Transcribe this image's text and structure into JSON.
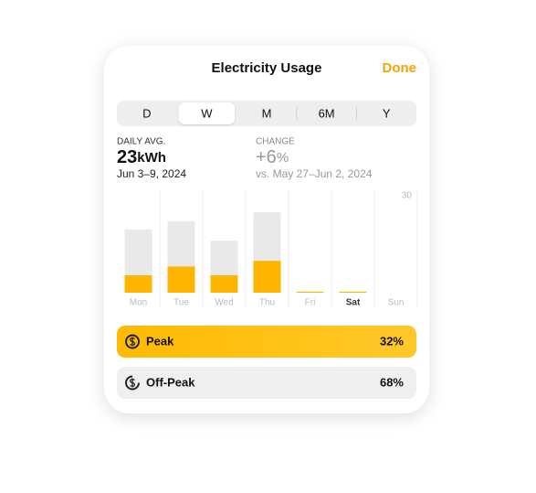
{
  "header": {
    "title": "Electricity Usage",
    "done": "Done"
  },
  "segments": {
    "options": [
      "D",
      "W",
      "M",
      "6M",
      "Y"
    ],
    "selected": 1
  },
  "stats": {
    "daily_label": "DAILY AVG.",
    "daily_value": "23",
    "daily_unit": "kWh",
    "daily_range": "Jun 3–9, 2024",
    "change_label": "CHANGE",
    "change_value": "+6",
    "change_unit": "%",
    "change_range": "vs. May 27–Jun 2, 2024"
  },
  "chart_data": {
    "type": "stacked_bar",
    "categories": [
      "Mon",
      "Tue",
      "Wed",
      "Thu",
      "Fri",
      "Sat",
      "Sun"
    ],
    "highlight_category": 5,
    "series": [
      {
        "name": "Peak",
        "color": "#ffb400",
        "values": [
          5.3,
          8,
          5.3,
          9.7,
          0.3,
          0.3,
          null
        ]
      },
      {
        "name": "Off-Peak",
        "color": "#e9e9ea",
        "values": [
          13.9,
          13.7,
          10.5,
          14.7,
          0,
          0,
          null
        ]
      }
    ],
    "ylim": [
      0,
      30
    ],
    "yticks": [
      30
    ]
  },
  "breakdown": [
    {
      "percent": "32%"
    },
    {
      "percent": "68%"
    }
  ]
}
